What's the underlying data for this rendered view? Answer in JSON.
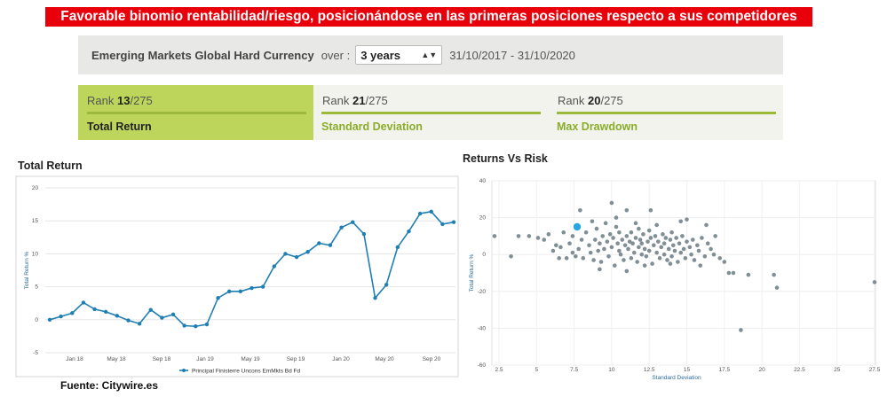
{
  "banner": "Favorable binomio rentabilidad/riesgo, posicionándose en las primeras posiciones respecto a sus competidores",
  "fund_bar": {
    "fund_name": "Emerging Markets Global Hard Currency",
    "over_label": "over :",
    "period_selected": "3 years",
    "date_range": "31/10/2017 - 31/10/2020"
  },
  "ranks": [
    {
      "rank_word": "Rank",
      "position": "13",
      "total": "/275",
      "label": "Total Return",
      "active": true
    },
    {
      "rank_word": "Rank",
      "position": "21",
      "total": "/275",
      "label": "Standard Deviation",
      "active": false
    },
    {
      "rank_word": "Rank",
      "position": "20",
      "total": "/275",
      "label": "Max Drawdown",
      "active": false
    }
  ],
  "source": "Fuente: Citywire.es",
  "colors": {
    "banner": "#e8000a",
    "accent_green": "#9bb93a",
    "line": "#1f7fb4",
    "scatter": "#808e95",
    "highlight": "#29a8e0"
  },
  "chart_data": [
    {
      "type": "line",
      "title": "Total Return",
      "ylabel": "Total Return %",
      "ylim": [
        -5,
        20
      ],
      "yticks": [
        "20",
        "15",
        "10",
        "5",
        "0",
        "-5"
      ],
      "xticks": [
        "Jan 18",
        "May 18",
        "Sep 18",
        "Jan 19",
        "May 19",
        "Sep 19",
        "Jan 20",
        "May 20",
        "Sep 20"
      ],
      "grid": true,
      "legend": "bottom",
      "series": [
        {
          "name": "Principal Finisterre Uncons EmMkts Bd Fd",
          "values": [
            0,
            0.5,
            1,
            2.6,
            1.6,
            1.2,
            0.6,
            -0.1,
            -0.6,
            1.5,
            0.3,
            0.8,
            -0.9,
            -1,
            -0.7,
            3.3,
            4.3,
            4.3,
            4.8,
            5,
            8.1,
            10,
            9.5,
            10.3,
            11.6,
            11.3,
            14,
            14.8,
            13,
            3.3,
            5.3,
            11,
            13.4,
            16.1,
            16.4,
            14.5,
            14.8
          ]
        }
      ]
    },
    {
      "type": "scatter",
      "title": "Returns Vs Risk",
      "xlabel": "Standard Deviation",
      "ylabel": "Total Return %",
      "xlim": [
        1.5,
        27.5
      ],
      "ylim": [
        -60,
        40
      ],
      "xticks": [
        "2.5",
        "5",
        "7.5",
        "10",
        "12.5",
        "15",
        "17.5",
        "20",
        "22.5",
        "25",
        "27.5"
      ],
      "yticks": [
        "40",
        "20",
        "0",
        "-20",
        "-40",
        "-60"
      ],
      "grid": true,
      "highlight": {
        "x": 7.7,
        "y": 15
      },
      "points": [
        [
          2.2,
          10
        ],
        [
          3.3,
          -1
        ],
        [
          3.8,
          10
        ],
        [
          4.5,
          10
        ],
        [
          5.1,
          9
        ],
        [
          5.5,
          8
        ],
        [
          5.8,
          11
        ],
        [
          6.1,
          2
        ],
        [
          6.3,
          5
        ],
        [
          6.6,
          4
        ],
        [
          6.8,
          12
        ],
        [
          7.0,
          -2
        ],
        [
          7.2,
          6
        ],
        [
          7.4,
          10
        ],
        [
          7.6,
          -1
        ],
        [
          7.8,
          3
        ],
        [
          8.0,
          8
        ],
        [
          8.1,
          -2
        ],
        [
          8.3,
          12
        ],
        [
          8.5,
          5
        ],
        [
          8.6,
          1
        ],
        [
          8.8,
          -3
        ],
        [
          8.9,
          8
        ],
        [
          9.0,
          14
        ],
        [
          9.1,
          2
        ],
        [
          9.2,
          6
        ],
        [
          9.3,
          -4
        ],
        [
          9.4,
          10
        ],
        [
          9.5,
          3
        ],
        [
          9.6,
          17
        ],
        [
          9.7,
          7
        ],
        [
          9.8,
          -1
        ],
        [
          9.9,
          11
        ],
        [
          10.0,
          28
        ],
        [
          10.0,
          4
        ],
        [
          10.1,
          9
        ],
        [
          10.2,
          -6
        ],
        [
          10.3,
          15
        ],
        [
          10.4,
          6
        ],
        [
          10.5,
          2
        ],
        [
          10.5,
          12
        ],
        [
          10.6,
          0
        ],
        [
          10.7,
          8
        ],
        [
          10.8,
          -3
        ],
        [
          10.9,
          5
        ],
        [
          11.0,
          10
        ],
        [
          11.0,
          24
        ],
        [
          11.1,
          3
        ],
        [
          11.2,
          7
        ],
        [
          11.3,
          -2
        ],
        [
          11.3,
          12
        ],
        [
          11.4,
          6
        ],
        [
          11.5,
          1
        ],
        [
          11.6,
          9
        ],
        [
          11.7,
          -4
        ],
        [
          11.8,
          4
        ],
        [
          11.8,
          14
        ],
        [
          11.9,
          8
        ],
        [
          12.0,
          0
        ],
        [
          12.0,
          6
        ],
        [
          12.1,
          11
        ],
        [
          12.2,
          3
        ],
        [
          12.3,
          -1
        ],
        [
          12.4,
          7
        ],
        [
          12.5,
          13
        ],
        [
          12.5,
          2
        ],
        [
          12.6,
          9
        ],
        [
          12.7,
          -5
        ],
        [
          12.8,
          5
        ],
        [
          12.9,
          10
        ],
        [
          13.0,
          1
        ],
        [
          13.0,
          16
        ],
        [
          13.1,
          7
        ],
        [
          13.2,
          -2
        ],
        [
          13.3,
          4
        ],
        [
          13.4,
          11
        ],
        [
          13.5,
          0
        ],
        [
          13.5,
          6
        ],
        [
          13.6,
          9
        ],
        [
          13.7,
          -3
        ],
        [
          13.8,
          3
        ],
        [
          13.9,
          8
        ],
        [
          14.0,
          -1
        ],
        [
          14.0,
          12
        ],
        [
          14.1,
          5
        ],
        [
          14.2,
          2
        ],
        [
          14.3,
          9
        ],
        [
          14.4,
          -4
        ],
        [
          14.5,
          6
        ],
        [
          14.6,
          1
        ],
        [
          14.7,
          10
        ],
        [
          14.8,
          3
        ],
        [
          14.9,
          -2
        ],
        [
          15.0,
          7
        ],
        [
          15.0,
          19
        ],
        [
          15.2,
          4
        ],
        [
          15.3,
          0
        ],
        [
          15.4,
          8
        ],
        [
          15.5,
          -3
        ],
        [
          15.7,
          5
        ],
        [
          15.8,
          2
        ],
        [
          16.0,
          9
        ],
        [
          16.2,
          -1
        ],
        [
          16.4,
          6
        ],
        [
          16.6,
          3
        ],
        [
          16.9,
          10
        ],
        [
          17.2,
          -2
        ],
        [
          17.5,
          -4
        ],
        [
          17.8,
          -10
        ],
        [
          18.1,
          -10
        ],
        [
          19.1,
          -11
        ],
        [
          20.8,
          -11
        ],
        [
          21.0,
          -18
        ],
        [
          18.6,
          -41
        ],
        [
          27.5,
          -15
        ],
        [
          7.9,
          24
        ],
        [
          8.7,
          18
        ],
        [
          10.3,
          20
        ],
        [
          11.6,
          17
        ],
        [
          12.6,
          24
        ],
        [
          14.6,
          18
        ],
        [
          16.3,
          16
        ],
        [
          9.2,
          -8
        ],
        [
          12.2,
          -6
        ],
        [
          13.9,
          -5
        ],
        [
          15.9,
          -6
        ],
        [
          6.5,
          -2
        ],
        [
          7.4,
          1
        ],
        [
          11.0,
          -9
        ],
        [
          16.8,
          0
        ]
      ]
    }
  ]
}
